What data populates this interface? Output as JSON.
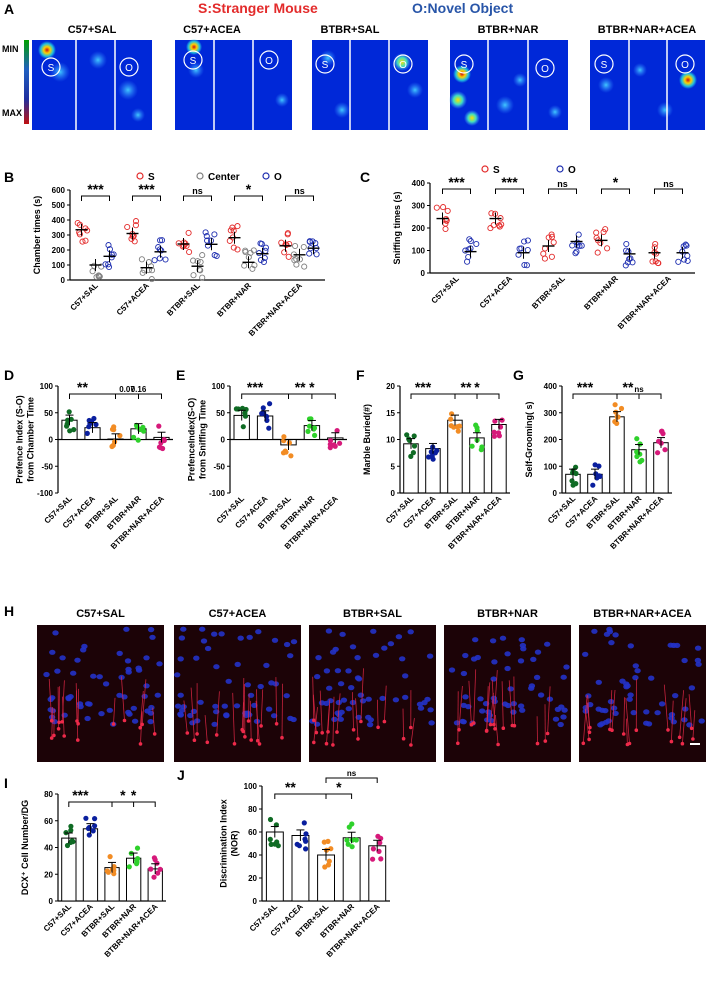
{
  "figure_legend": {
    "stranger_label": "S:Stranger Mouse",
    "object_label": "O:Novel Object",
    "stranger_color": "#e32b2b",
    "object_color": "#2855a8"
  },
  "colors": {
    "c57_sal": "#0f6b24",
    "c57_acea": "#0a1f9e",
    "btbr_sal": "#f28c24",
    "btbr_nar": "#2ed12b",
    "btbr_nar_acea": "#d6197a",
    "stranger": "#e32b2b",
    "center": "#808080",
    "object": "#1f2fb0",
    "heatmap_bg": "#0028d8",
    "tissue_bg": "#1c0307",
    "nuclei": "#2432c8",
    "dcx": "#ee2a4a"
  },
  "panel_A": {
    "letter": "A",
    "scale_min": "MIN",
    "scale_max": "MAX",
    "maps": [
      {
        "label": "C57+SAL",
        "left_mark": "S",
        "right_mark": "O"
      },
      {
        "label": "C57+ACEA",
        "left_mark": "S",
        "right_mark": "O"
      },
      {
        "label": "BTBR+SAL",
        "left_mark": "S",
        "right_mark": "O"
      },
      {
        "label": "BTBR+NAR",
        "left_mark": "S",
        "right_mark": "O"
      },
      {
        "label": "BTBR+NAR+ACEA",
        "left_mark": "S",
        "right_mark": "O"
      }
    ]
  },
  "panel_H": {
    "letter": "H",
    "labels": [
      "C57+SAL",
      "C57+ACEA",
      "BTBR+SAL",
      "BTBR+NAR",
      "BTBR+NAR+ACEA"
    ]
  },
  "chart_data": [
    {
      "id": "B",
      "type": "scatter",
      "letter": "B",
      "ylabel": "Chamber times (s)",
      "ylim": [
        0,
        600
      ],
      "yticks": [
        "0",
        "100",
        "200",
        "300",
        "400",
        "500",
        "600"
      ],
      "categories": [
        "C57+SAL",
        "C57+ACEA",
        "BTBR+SAL",
        "BTBR+NAR",
        "BTBR+NAR+ACEA"
      ],
      "legend": [
        "S",
        "Center",
        "O"
      ],
      "series": [
        {
          "name": "S",
          "means": [
            335,
            310,
            240,
            282,
            228
          ]
        },
        {
          "name": "Center",
          "means": [
            100,
            82,
            92,
            118,
            168
          ]
        },
        {
          "name": "O",
          "means": [
            158,
            188,
            238,
            175,
            212
          ]
        }
      ],
      "significance": [
        "***",
        "***",
        "ns",
        "*",
        "ns"
      ]
    },
    {
      "id": "C",
      "type": "scatter",
      "letter": "C",
      "ylabel": "Sniffing  times (s)",
      "ylim": [
        0,
        400
      ],
      "yticks": [
        "0",
        "100",
        "200",
        "300",
        "400"
      ],
      "categories": [
        "C57+SAL",
        "C57+ACEA",
        "BTBR+SAL",
        "BTBR+NAR",
        "BTBR+NAR+ACEA"
      ],
      "legend": [
        "S",
        "O"
      ],
      "series": [
        {
          "name": "S",
          "means": [
            242,
            242,
            120,
            145,
            90
          ]
        },
        {
          "name": "O",
          "means": [
            95,
            90,
            140,
            85,
            90
          ]
        }
      ],
      "significance": [
        "***",
        "***",
        "ns",
        "*",
        "ns"
      ]
    },
    {
      "id": "D",
      "type": "bar",
      "letter": "D",
      "ylabel": "Prefence Index (S-O)\nfrom Chamber Time",
      "ylim": [
        -100,
        100
      ],
      "yticks": [
        "-100",
        "-50",
        "0",
        "50",
        "100"
      ],
      "categories": [
        "C57+SAL",
        "C57+ACEA",
        "BTBR+SAL",
        "BTBR+NAR",
        "BTBR+NAR+ACEA"
      ],
      "values": [
        36,
        22,
        1,
        20,
        4
      ],
      "sig_labels": [
        "**",
        "0.07",
        "0.16"
      ]
    },
    {
      "id": "E",
      "type": "bar",
      "letter": "E",
      "ylabel": "PrefenceIndex(S-O)\nfrom Sniffing Time",
      "ylim": [
        -100,
        100
      ],
      "yticks": [
        "-100",
        "-50",
        "0",
        "50",
        "100"
      ],
      "categories": [
        "C57+SAL",
        "C57+ACEA",
        "BTBR+SAL",
        "BTBR+NAR",
        "BTBR+NAR+ACEA"
      ],
      "values": [
        45,
        44,
        -10,
        26,
        3
      ],
      "sig_labels": [
        "***",
        "**",
        "*"
      ]
    },
    {
      "id": "F",
      "type": "bar",
      "letter": "F",
      "ylabel": "Marble Buried(#)",
      "ylim": [
        0,
        20
      ],
      "yticks": [
        "0",
        "5",
        "10",
        "15",
        "20"
      ],
      "categories": [
        "C57+SAL",
        "C57+ACEA",
        "BTBR+SAL",
        "BTBR+NAR",
        "BTBR+NAR+ACEA"
      ],
      "values": [
        9.2,
        8.3,
        13.6,
        10.3,
        12.8
      ],
      "sig_labels": [
        "***",
        "**",
        "*"
      ]
    },
    {
      "id": "G",
      "type": "bar",
      "letter": "G",
      "ylabel": "Self-Grooming( s)",
      "ylim": [
        0,
        400
      ],
      "yticks": [
        "0",
        "100",
        "200",
        "300",
        "400"
      ],
      "categories": [
        "C57+SAL",
        "C57+ACEA",
        "BTBR+SAL",
        "BTBR+NAR",
        "BTBR+NAR+ACEA"
      ],
      "values": [
        70,
        70,
        285,
        162,
        188
      ],
      "sig_labels": [
        "***",
        "**",
        "ns"
      ]
    },
    {
      "id": "I",
      "type": "bar",
      "letter": "I",
      "ylabel": "DCX⁺ Cell Number/DG",
      "ylim": [
        0,
        80
      ],
      "yticks": [
        "0",
        "20",
        "40",
        "60",
        "80"
      ],
      "categories": [
        "C57+SAL",
        "C57+ACEA",
        "BTBR+SAL",
        "BTBR+NAR",
        "BTBR+NAR+ACEA"
      ],
      "values": [
        47,
        54,
        25,
        32,
        24
      ],
      "sig_labels": [
        "***",
        "*",
        "*"
      ]
    },
    {
      "id": "J",
      "type": "bar",
      "letter": "J",
      "ylabel": "Discrimination Index\n(NOR)",
      "ylim": [
        0,
        100
      ],
      "yticks": [
        "0",
        "20",
        "40",
        "60",
        "80",
        "100"
      ],
      "categories": [
        "C57+SAL",
        "C57+ACEA",
        "BTBR+SAL",
        "BTBR+NAR",
        "BTBR+NAR+ACEA"
      ],
      "values": [
        60,
        57,
        40,
        55,
        48
      ],
      "sig_labels": [
        "**",
        "*",
        "ns"
      ]
    }
  ]
}
